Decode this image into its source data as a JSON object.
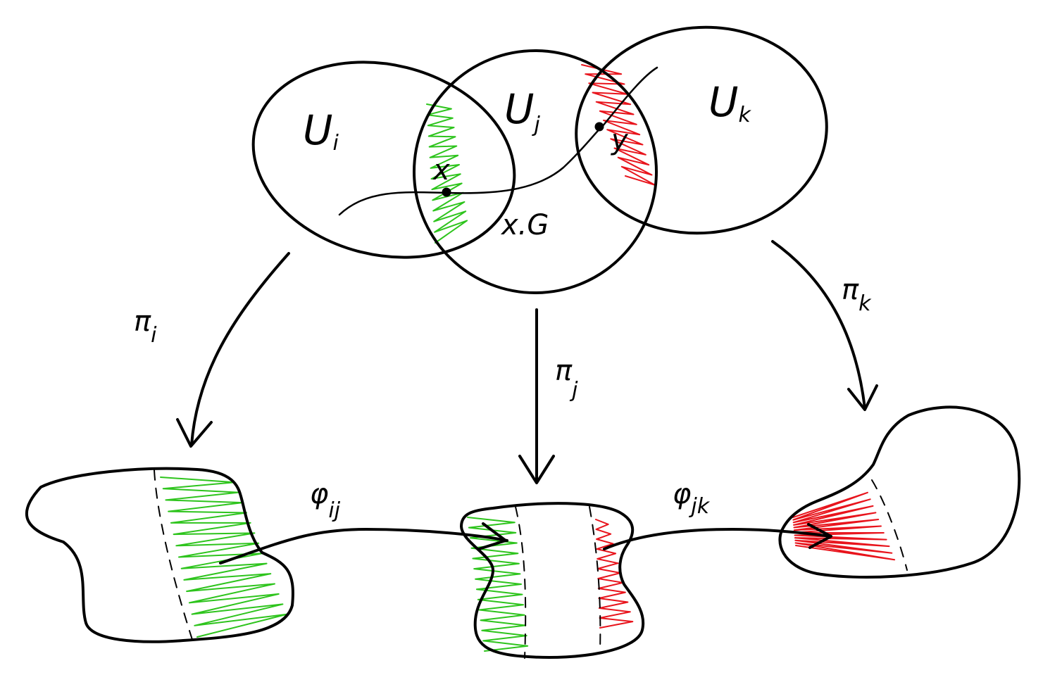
{
  "labels": {
    "set_i": {
      "main": "U",
      "sub": "i"
    },
    "set_j": {
      "main": "U",
      "sub": "j"
    },
    "set_k": {
      "main": "U",
      "sub": "k"
    },
    "point_x": "x",
    "point_y": "y",
    "orbit": "x.G",
    "proj_i": {
      "main": "π",
      "sub": "i"
    },
    "proj_j": {
      "main": "π",
      "sub": "j"
    },
    "proj_k": {
      "main": "π",
      "sub": "k"
    },
    "trans_ij": {
      "main": "φ",
      "sub": "ij"
    },
    "trans_jk": {
      "main": "φ",
      "sub": "jk"
    }
  },
  "colors": {
    "ink": "#000000",
    "green_hatch": "#2ec41d",
    "red_hatch": "#e8141c",
    "background": "#ffffff"
  }
}
